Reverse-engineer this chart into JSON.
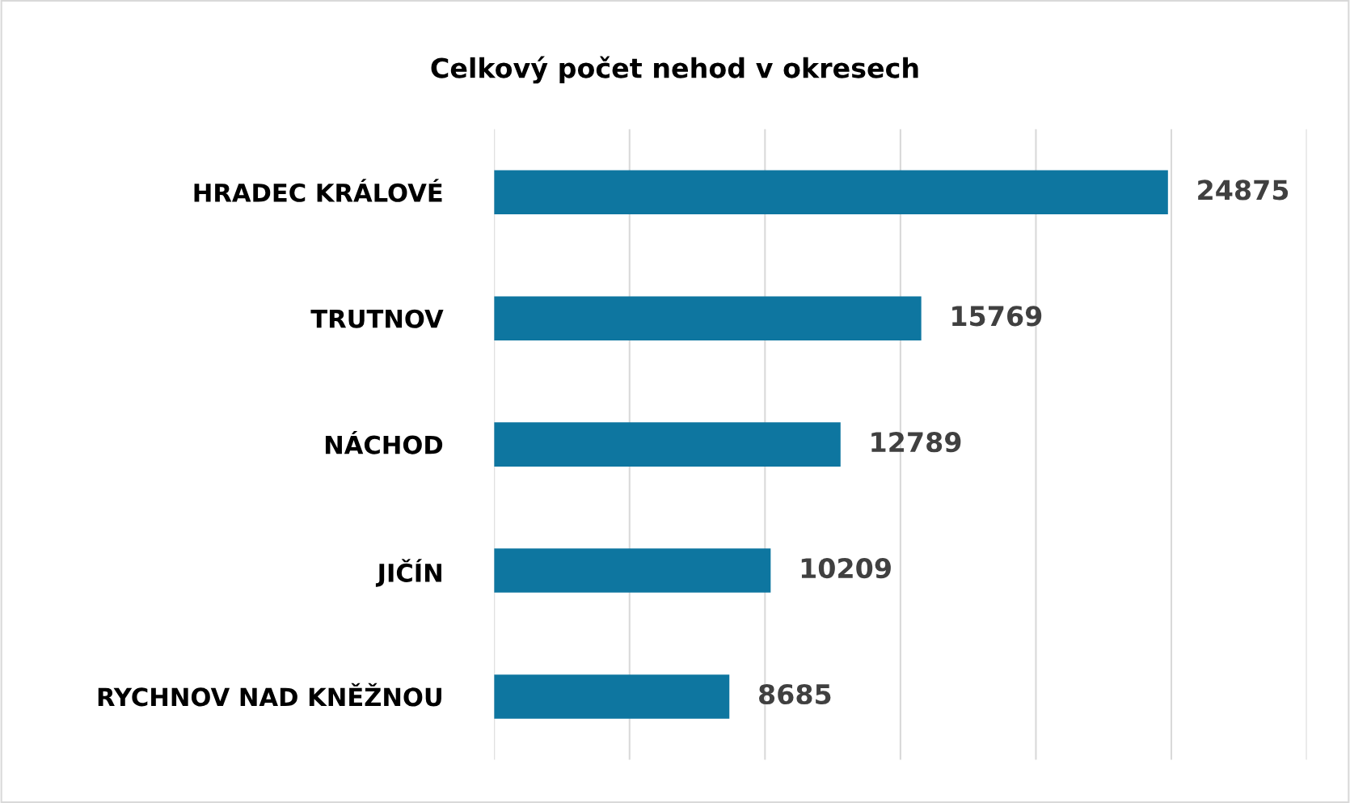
{
  "chart_data": {
    "type": "bar",
    "orientation": "horizontal",
    "title": "Celkový počet nehod v okresech",
    "categories": [
      "HRADEC KRÁLOVÉ",
      "TRUTNOV",
      "NÁCHOD",
      "JIČÍN",
      "RYCHNOV NAD KNĚŽNOU"
    ],
    "values": [
      24875,
      15769,
      12789,
      10209,
      8685
    ],
    "color": "#0e76a0",
    "data_labels": true,
    "xlim": [
      0,
      30000
    ],
    "xticks": [
      {
        "value": 0,
        "label": null
      },
      {
        "value": 5000,
        "label": null
      },
      {
        "value": 10000,
        "label": null
      },
      {
        "value": 15000,
        "label": null
      },
      {
        "value": 20000,
        "label": null
      },
      {
        "value": 25000,
        "label": null
      },
      {
        "value": 30000,
        "label": null
      }
    ],
    "grid": "x",
    "tick_labels": "y"
  }
}
